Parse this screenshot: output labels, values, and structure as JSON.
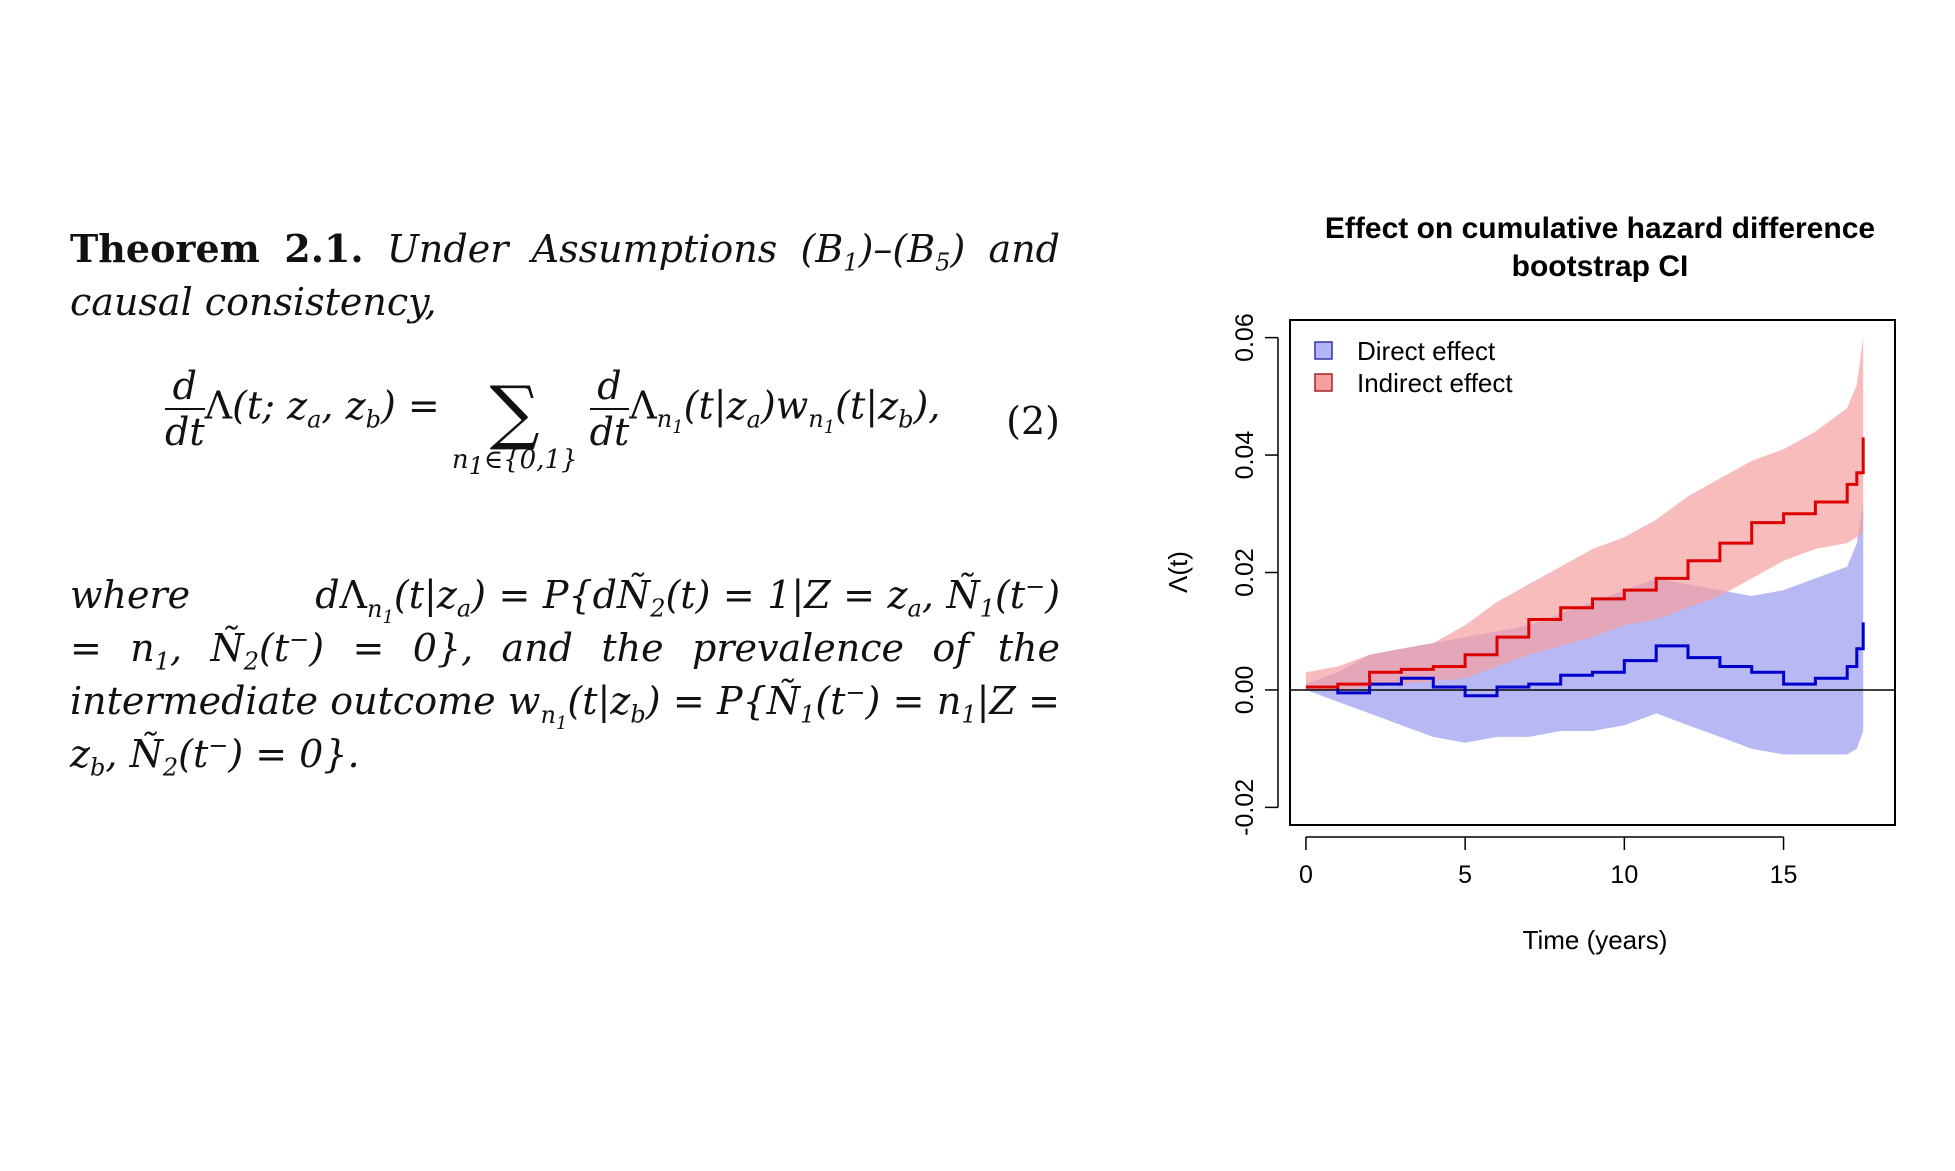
{
  "theorem": {
    "label": "Theorem 2.1.",
    "intro": "Under Assumptions (B1)–(B5) and causal consistency,",
    "equation_number": "(2)",
    "where_line": "where dΛn1(t|za) = P{dÑ2(t) = 1|Z = za, Ñ1(t−) = n1, Ñ2(t−) = 0}, and the prevalence of the intermediate outcome wn1(t|zb) = P{Ñ1(t−) = n1|Z = zb, Ñ2(t−) = 0}."
  },
  "chart_data": {
    "type": "line",
    "title": "Effect on cumulative hazard difference",
    "subtitle": "bootstrap CI",
    "xlabel": "Time (years)",
    "ylabel": "Λ(t)",
    "xlim": [
      -0.5,
      18.5
    ],
    "ylim": [
      -0.023,
      0.063
    ],
    "x_ticks": [
      0,
      5,
      10,
      15
    ],
    "y_ticks": [
      -0.02,
      0.0,
      0.02,
      0.04,
      0.06
    ],
    "x_tick_labels": [
      "0",
      "5",
      "10",
      "15"
    ],
    "y_tick_labels": [
      "-0.02",
      "0.00",
      "0.02",
      "0.04",
      "0.06"
    ],
    "reference_line_y": 0,
    "legend_position": "top-left",
    "series": [
      {
        "name": "Direct effect",
        "line_color": "#0000cc",
        "band_color": "#9a9af0",
        "x": [
          0,
          1,
          2,
          3,
          4,
          5,
          6,
          7,
          8,
          9,
          10,
          11,
          12,
          13,
          14,
          15,
          16,
          17,
          17.3,
          17.5
        ],
        "y": [
          0.0005,
          -0.0005,
          0.001,
          0.002,
          0.0005,
          -0.001,
          0.0005,
          0.001,
          0.0025,
          0.003,
          0.005,
          0.0075,
          0.0055,
          0.004,
          0.003,
          0.001,
          0.002,
          0.004,
          0.007,
          0.0115
        ],
        "lower": [
          0.0,
          -0.002,
          -0.004,
          -0.006,
          -0.008,
          -0.009,
          -0.008,
          -0.008,
          -0.007,
          -0.007,
          -0.006,
          -0.004,
          -0.006,
          -0.008,
          -0.01,
          -0.011,
          -0.011,
          -0.011,
          -0.01,
          -0.007
        ],
        "upper": [
          0.001,
          0.003,
          0.006,
          0.007,
          0.008,
          0.009,
          0.01,
          0.011,
          0.013,
          0.015,
          0.017,
          0.019,
          0.018,
          0.017,
          0.016,
          0.017,
          0.019,
          0.021,
          0.025,
          0.032
        ]
      },
      {
        "name": "Indirect effect",
        "line_color": "#dd0000",
        "band_color": "#f5a0a0",
        "x": [
          0,
          1,
          2,
          3,
          4,
          5,
          6,
          7,
          8,
          9,
          10,
          11,
          12,
          13,
          14,
          15,
          16,
          17,
          17.3,
          17.5
        ],
        "y": [
          0.0005,
          0.001,
          0.003,
          0.0035,
          0.004,
          0.006,
          0.009,
          0.012,
          0.014,
          0.0155,
          0.017,
          0.019,
          0.022,
          0.025,
          0.0285,
          0.03,
          0.032,
          0.035,
          0.037,
          0.043
        ],
        "lower": [
          0.0,
          0.0,
          0.0005,
          0.001,
          0.0015,
          0.002,
          0.004,
          0.006,
          0.0075,
          0.009,
          0.011,
          0.012,
          0.014,
          0.016,
          0.019,
          0.022,
          0.024,
          0.025,
          0.026,
          0.027
        ],
        "upper": [
          0.003,
          0.004,
          0.006,
          0.007,
          0.008,
          0.011,
          0.015,
          0.018,
          0.021,
          0.024,
          0.026,
          0.029,
          0.033,
          0.036,
          0.039,
          0.041,
          0.044,
          0.048,
          0.052,
          0.06
        ]
      }
    ]
  }
}
